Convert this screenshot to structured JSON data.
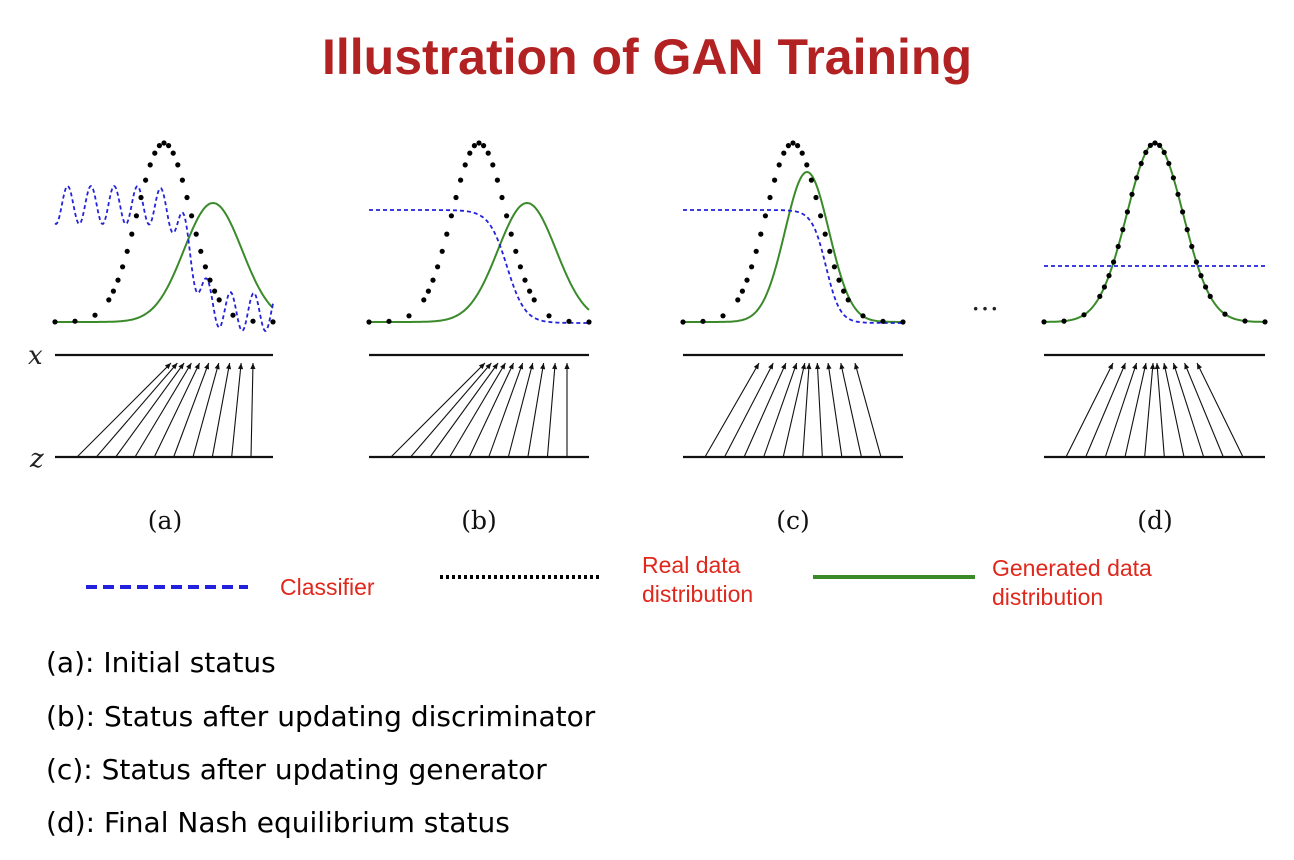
{
  "title": "Illustration of GAN Training",
  "axis_labels": {
    "x": "x",
    "z": "z"
  },
  "panels": [
    {
      "label": "(a)"
    },
    {
      "label": "(b)"
    },
    {
      "label": "(c)"
    },
    {
      "label": "(d)"
    }
  ],
  "ellipsis": "…",
  "legend": {
    "classifier": "Classifier",
    "real_line1": "Real data",
    "real_line2": "distribution",
    "generated_line1": "Generated data",
    "generated_line2": "distribution"
  },
  "captions": [
    "(a):  Initial status",
    "(b):  Status after updating discriminator",
    "(c):  Status after updating generator",
    "(d): Final Nash equilibrium status"
  ],
  "colors": {
    "title": "#b22222",
    "classifier": "#2222dd",
    "real": "#000000",
    "generated": "#3a8a2a",
    "legend_text": "#e0271c"
  }
}
